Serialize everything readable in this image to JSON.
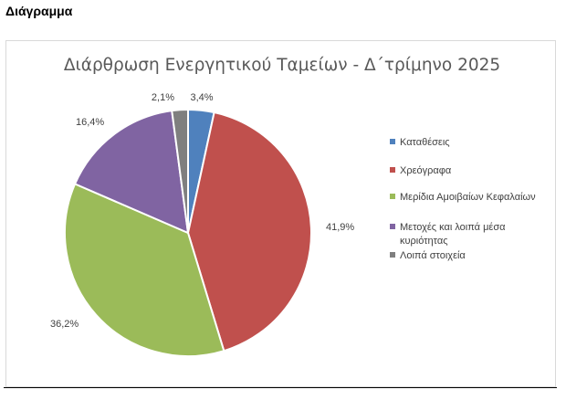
{
  "page": {
    "heading": "Διάγραμμα"
  },
  "chart_data": {
    "type": "pie",
    "title": "Διάρθρωση Ενεργητικού Ταμείων - Δ΄τρίμηνο 2025",
    "legend_position": "right",
    "slices": [
      {
        "name": "Καταθέσεις",
        "value": 3.4,
        "label": "3,4%",
        "color": "#4f81bd"
      },
      {
        "name": "Χρεόγραφα",
        "value": 41.9,
        "label": "41,9%",
        "color": "#c0504d"
      },
      {
        "name": "Μερίδια Αμοιβαίων Κεφαλαίων",
        "value": 36.2,
        "label": "36,2%",
        "color": "#9bbb59"
      },
      {
        "name": "Μετοχές και λοιπά μέσα κυριότητας",
        "legend_lines": [
          "Μετοχές και λοιπά μέσα",
          "κυριότητας"
        ],
        "value": 16.4,
        "label": "16,4%",
        "color": "#8064a2"
      },
      {
        "name": "Λοιπά στοιχεία",
        "value": 2.1,
        "label": "2,1%",
        "color": "#7f7f7f"
      }
    ]
  }
}
